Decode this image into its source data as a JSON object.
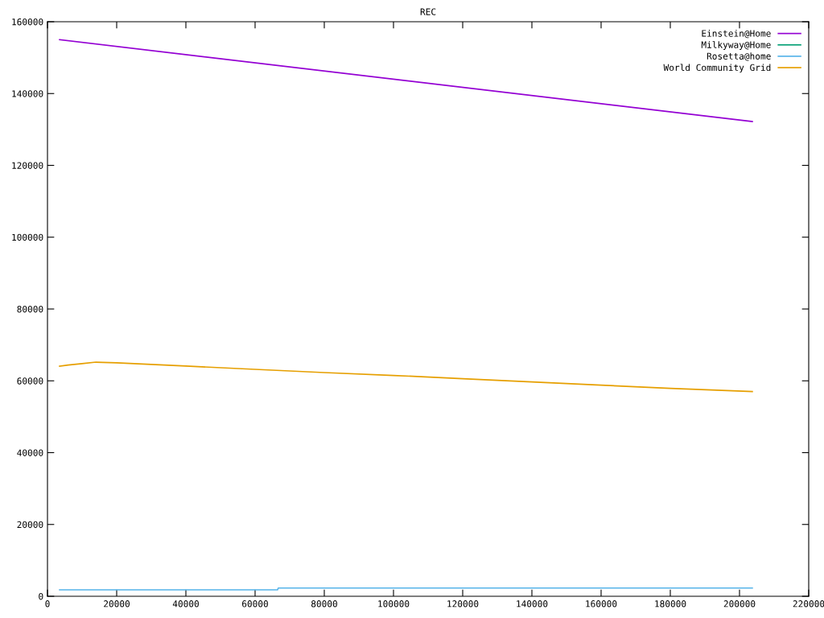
{
  "chart_data": {
    "type": "line",
    "title": "REC",
    "xlim": [
      0,
      220000
    ],
    "xticks": [
      0,
      20000,
      40000,
      60000,
      80000,
      100000,
      120000,
      140000,
      160000,
      180000,
      200000,
      220000
    ],
    "ylim": [
      0,
      160000
    ],
    "yticks": [
      0,
      20000,
      40000,
      60000,
      80000,
      100000,
      120000,
      140000,
      160000
    ],
    "grid": false,
    "legend": "top right",
    "marker": "none",
    "line_style": "solid",
    "series": [
      {
        "name": "Einstein@Home",
        "color": "#9400d3",
        "x": [
          3500,
          203700
        ],
        "values": [
          155000,
          132200
        ]
      },
      {
        "name": "Milkyway@Home",
        "color": "#009e73"
      },
      {
        "name": "Rosetta@home",
        "color": "#56b4e9",
        "x": [
          3500,
          66500,
          66700,
          203700
        ],
        "values": [
          1800,
          1800,
          2300,
          2300
        ]
      },
      {
        "name": "World Community Grid",
        "color": "#e69f00",
        "x": [
          3500,
          6000,
          10000,
          14000,
          20000,
          40000,
          60000,
          80000,
          100000,
          120000,
          140000,
          160000,
          180000,
          203700
        ],
        "values": [
          64100,
          64400,
          64800,
          65200,
          65000,
          64100,
          63200,
          62300,
          61500,
          60600,
          59700,
          58800,
          57900,
          57000
        ]
      }
    ]
  }
}
